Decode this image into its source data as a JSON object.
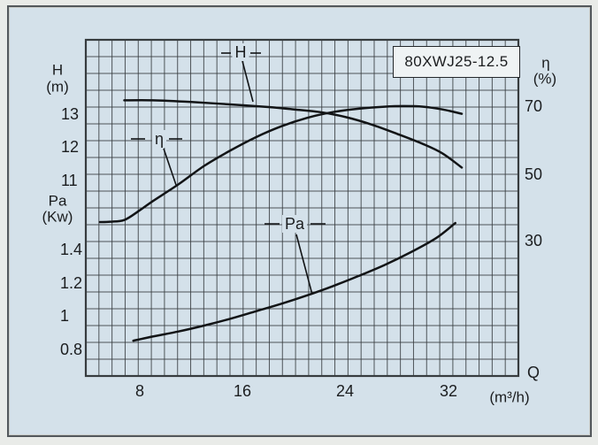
{
  "model": "80XWJ25-12.5",
  "axes": {
    "head": {
      "label": "H",
      "unit": "(m)",
      "ticks": [
        "13",
        "12",
        "11"
      ]
    },
    "power": {
      "label": "Pa",
      "unit": "(Kw)",
      "ticks": [
        "1.4",
        "1.2",
        "1",
        "0.8"
      ]
    },
    "efficiency": {
      "label": "η",
      "unit": "(%)",
      "ticks": [
        "70",
        "50",
        "30"
      ]
    },
    "flow": {
      "label": "Q",
      "unit": "(m³/h)",
      "ticks": [
        "8",
        "16",
        "24",
        "32"
      ]
    }
  },
  "curve_labels": {
    "head": "H",
    "efficiency": "η",
    "power": "Pa"
  },
  "colors": {
    "card_background": "#d4e1ea",
    "grid_line": "#373c3f",
    "curve": "#121416",
    "text": "#1b1d1f",
    "model_box_background": "#eff3f4"
  },
  "chart_data": {
    "type": "line",
    "title": "80XWJ25-12.5",
    "xlabel": "Q (m³/h)",
    "x_ticks": [
      8,
      16,
      24,
      32
    ],
    "x_range": [
      3.8,
      37.2
    ],
    "grid": true,
    "legend_position": "inline-labels",
    "y_axes": [
      {
        "id": "H",
        "label": "H (m)",
        "ticks": [
          13,
          12,
          11
        ],
        "side": "left"
      },
      {
        "id": "Pa",
        "label": "Pa (Kw)",
        "ticks": [
          1.4,
          1.2,
          1,
          0.8
        ],
        "side": "left"
      },
      {
        "id": "eta",
        "label": "η (%)",
        "ticks": [
          70,
          50,
          30
        ],
        "side": "right"
      }
    ],
    "series": [
      {
        "name": "H",
        "axis": "H",
        "points": [
          [
            6.8,
            13.2
          ],
          [
            9,
            13.2
          ],
          [
            12,
            13.15
          ],
          [
            15,
            13.08
          ],
          [
            18,
            13.0
          ],
          [
            20,
            12.93
          ],
          [
            22,
            12.85
          ],
          [
            24,
            12.7
          ],
          [
            26,
            12.48
          ],
          [
            28,
            12.2
          ],
          [
            30,
            11.9
          ],
          [
            31.5,
            11.62
          ],
          [
            33,
            11.2
          ]
        ]
      },
      {
        "name": "η",
        "axis": "eta",
        "points": [
          [
            4.9,
            35.8
          ],
          [
            5.7,
            35.9
          ],
          [
            6.8,
            36.4
          ],
          [
            8,
            39.3
          ],
          [
            9,
            42
          ],
          [
            11,
            47
          ],
          [
            13,
            52.5
          ],
          [
            15,
            57
          ],
          [
            17,
            61
          ],
          [
            19,
            64.3
          ],
          [
            21,
            66.8
          ],
          [
            23,
            68.5
          ],
          [
            25,
            69.5
          ],
          [
            27,
            70.1
          ],
          [
            28.5,
            70.3
          ],
          [
            30,
            70.1
          ],
          [
            31.5,
            69.3
          ],
          [
            33,
            68
          ]
        ]
      },
      {
        "name": "Pa",
        "axis": "Pa",
        "points": [
          [
            7.5,
            0.81
          ],
          [
            9,
            0.835
          ],
          [
            11,
            0.865
          ],
          [
            13,
            0.9
          ],
          [
            15,
            0.94
          ],
          [
            17,
            0.985
          ],
          [
            19,
            1.03
          ],
          [
            21,
            1.08
          ],
          [
            23,
            1.135
          ],
          [
            25,
            1.195
          ],
          [
            27,
            1.26
          ],
          [
            29,
            1.335
          ],
          [
            31,
            1.42
          ],
          [
            32.5,
            1.51
          ]
        ]
      }
    ]
  }
}
